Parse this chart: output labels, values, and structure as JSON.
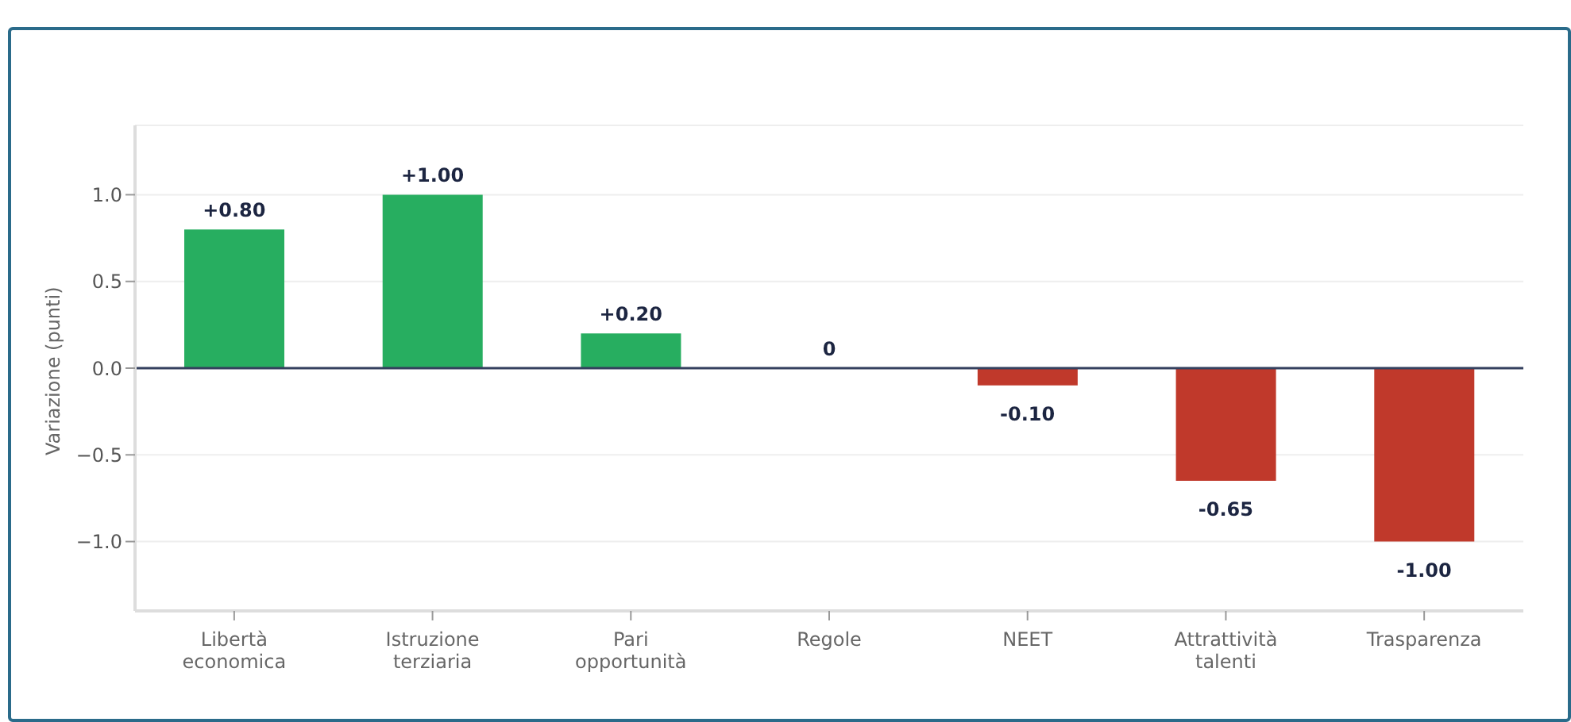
{
  "chart_data": {
    "type": "bar",
    "ylabel": "Variazione (punti)",
    "categories": [
      "Libertà economica",
      "Istruzione terziaria",
      "Pari opportunità",
      "Regole",
      "NEET",
      "Attrattività talenti",
      "Trasparenza"
    ],
    "values": [
      0.8,
      1.0,
      0.2,
      0,
      -0.1,
      -0.65,
      -1.0
    ],
    "colors": [
      "#27ae60",
      "#27ae60",
      "#27ae60",
      "#27ae60",
      "#c0392b",
      "#c0392b",
      "#c0392b"
    ],
    "value_labels": [
      "+0.80",
      "+1.00",
      "+0.20",
      "0",
      "-0.10",
      "-0.65",
      "-1.00"
    ],
    "ylim": [
      -1.4,
      1.4
    ],
    "yticks": [
      {
        "value": -1,
        "label": "−1.0"
      },
      {
        "value": -0.5,
        "label": "−0.5"
      },
      {
        "value": 0,
        "label": "0.0"
      },
      {
        "value": 0.5,
        "label": "0.5"
      },
      {
        "value": 1,
        "label": "1.0"
      }
    ],
    "grid": "y",
    "ref_lines": [
      {
        "axis": "y",
        "value": 0,
        "color": "#34405e"
      }
    ]
  }
}
